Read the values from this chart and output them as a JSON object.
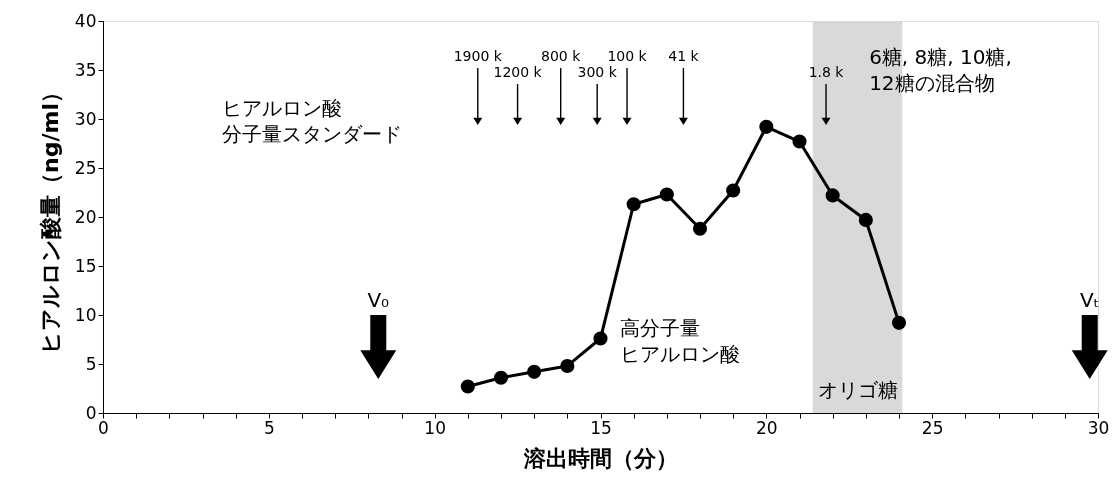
{
  "chart_data": {
    "type": "line",
    "xlabel": "溶出時間（分）",
    "ylabel": "ヒアルロン酸量（ng/ml）",
    "x": [
      11,
      12,
      13,
      14,
      15,
      16,
      17,
      18,
      19,
      20,
      21,
      22,
      23,
      24
    ],
    "series": [
      {
        "color": "#000000",
        "values": [
          2.7,
          3.6,
          4.2,
          4.8,
          7.6,
          21.3,
          22.3,
          18.8,
          22.7,
          29.2,
          27.7,
          22.2,
          19.7,
          9.2
        ]
      }
    ],
    "marker": "circle",
    "line_style": "solid",
    "grid": false,
    "xlim": [
      0,
      30
    ],
    "ylim": [
      0,
      40
    ],
    "xticks": [
      0,
      {
        "value": 1,
        "label": null
      },
      {
        "value": 2,
        "label": null
      },
      {
        "value": 3,
        "label": null
      },
      {
        "value": 4,
        "label": null
      },
      5,
      {
        "value": 6,
        "label": null
      },
      {
        "value": 7,
        "label": null
      },
      {
        "value": 8,
        "label": null
      },
      {
        "value": 9,
        "label": null
      },
      10,
      {
        "value": 11,
        "label": null
      },
      {
        "value": 12,
        "label": null
      },
      {
        "value": 13,
        "label": null
      },
      {
        "value": 14,
        "label": null
      },
      15,
      {
        "value": 16,
        "label": null
      },
      {
        "value": 17,
        "label": null
      },
      {
        "value": 18,
        "label": null
      },
      {
        "value": 19,
        "label": null
      },
      20,
      {
        "value": 21,
        "label": null
      },
      {
        "value": 22,
        "label": null
      },
      {
        "value": 23,
        "label": null
      },
      {
        "value": 24,
        "label": null
      },
      25,
      {
        "value": 26,
        "label": null
      },
      {
        "value": 27,
        "label": null
      },
      {
        "value": 28,
        "label": null
      },
      {
        "value": 29,
        "label": null
      },
      30
    ],
    "yticks": [
      0,
      5,
      10,
      15,
      20,
      25,
      30,
      35,
      40
    ],
    "bands": [
      {
        "axis": "x",
        "from": 21.4,
        "to": 24.1,
        "label": "オリゴ糖",
        "color": "#d9d9d9"
      }
    ],
    "ref_lines": [
      {
        "axis": "x",
        "value": 8.3,
        "label": "V₀"
      },
      {
        "axis": "x",
        "value": 29.75,
        "label": "Vₜ"
      },
      {
        "axis": "x",
        "value": 11.3,
        "label": "1900 k"
      },
      {
        "axis": "x",
        "value": 12.5,
        "label": "1200 k"
      },
      {
        "axis": "x",
        "value": 13.8,
        "label": "800 k"
      },
      {
        "axis": "x",
        "value": 14.9,
        "label": "300 k"
      },
      {
        "axis": "x",
        "value": 15.8,
        "label": "100 k"
      },
      {
        "axis": "x",
        "value": 17.5,
        "label": "41 k"
      },
      {
        "axis": "x",
        "value": 21.8,
        "label": "1.8 k"
      }
    ],
    "annotations": [
      "ヒアルロン酸分子量スタンダード",
      "高分子量ヒアルロン酸",
      "6糖, 8糖, 10糖, 12糖の混合物"
    ]
  }
}
